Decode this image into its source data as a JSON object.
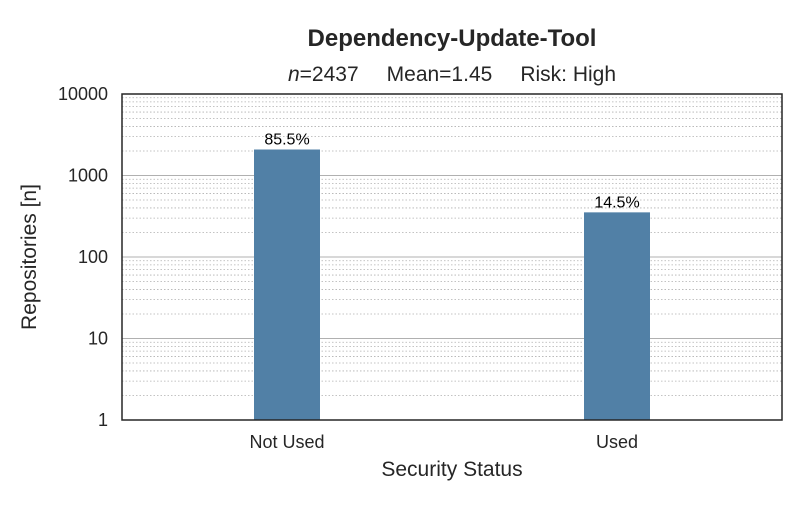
{
  "chart_data": {
    "type": "bar",
    "title": "Dependency-Update-Tool",
    "subtitle": {
      "n_symbol": "n",
      "n_value": "=2437",
      "mean": "Mean=1.45",
      "risk": "Risk: High"
    },
    "xlabel": "Security Status",
    "ylabel": "Repositories [n]",
    "categories": [
      "Not Used",
      "Used"
    ],
    "values": [
      2084,
      353
    ],
    "data_labels": [
      "85.5%",
      "14.5%"
    ],
    "yscale": "log",
    "ylim": [
      1,
      10000
    ],
    "y_ticks": [
      1,
      10,
      100,
      1000,
      10000
    ],
    "y_tick_labels": [
      "1",
      "10",
      "100",
      "1000",
      "10000"
    ],
    "grid": true,
    "bar_color": "#5180a6",
    "grid_color": "#b0b0b0",
    "axis_color": "#262626"
  }
}
